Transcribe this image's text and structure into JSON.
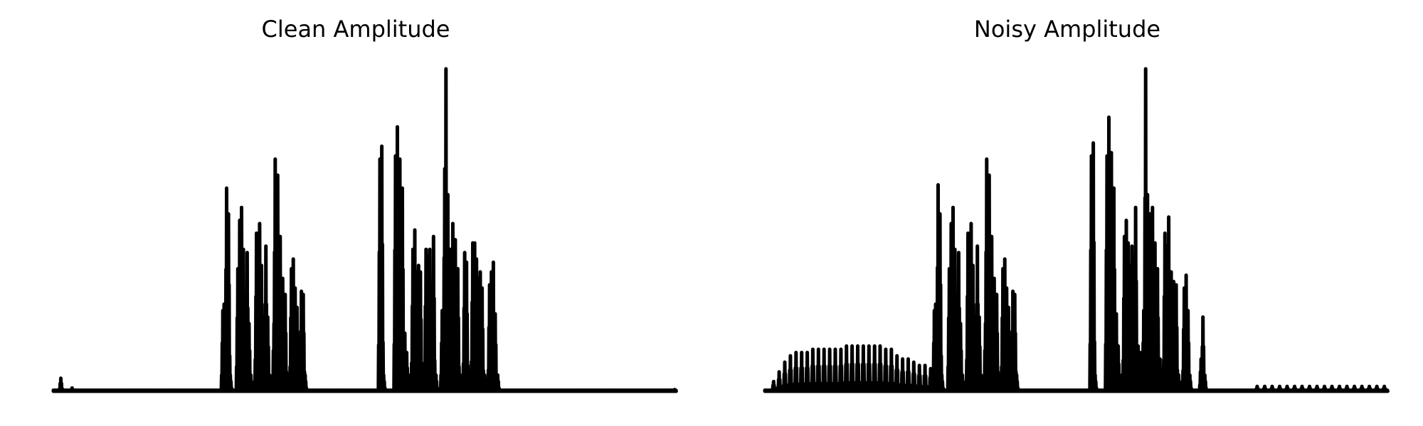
{
  "chart_data": [
    {
      "type": "line",
      "title": "Clean Amplitude",
      "xlabel": "",
      "ylabel": "",
      "axes": "off",
      "grid": false,
      "ylim": [
        0,
        1
      ],
      "n_samples": 1000,
      "peaks": [
        [
          12,
          0.04
        ],
        [
          30,
          0.01
        ],
        [
          272,
          0.25
        ],
        [
          274,
          0.27
        ],
        [
          278,
          0.63
        ],
        [
          281,
          0.55
        ],
        [
          284,
          0.05
        ],
        [
          296,
          0.38
        ],
        [
          299,
          0.53
        ],
        [
          302,
          0.57
        ],
        [
          305,
          0.44
        ],
        [
          308,
          0.08
        ],
        [
          311,
          0.43
        ],
        [
          314,
          0.21
        ],
        [
          317,
          0.05
        ],
        [
          326,
          0.49
        ],
        [
          329,
          0.42
        ],
        [
          331,
          0.52
        ],
        [
          334,
          0.39
        ],
        [
          338,
          0.05
        ],
        [
          341,
          0.45
        ],
        [
          344,
          0.23
        ],
        [
          347,
          0.05
        ],
        [
          354,
          0.21
        ],
        [
          356,
          0.72
        ],
        [
          360,
          0.67
        ],
        [
          364,
          0.48
        ],
        [
          368,
          0.35
        ],
        [
          372,
          0.3
        ],
        [
          376,
          0.05
        ],
        [
          382,
          0.38
        ],
        [
          385,
          0.41
        ],
        [
          388,
          0.32
        ],
        [
          391,
          0.26
        ],
        [
          394,
          0.05
        ],
        [
          398,
          0.31
        ],
        [
          401,
          0.3
        ],
        [
          404,
          0.05
        ],
        [
          524,
          0.72
        ],
        [
          527,
          0.76
        ],
        [
          530,
          0.05
        ],
        [
          549,
          0.73
        ],
        [
          552,
          0.82
        ],
        [
          556,
          0.72
        ],
        [
          560,
          0.63
        ],
        [
          564,
          0.18
        ],
        [
          567,
          0.12
        ],
        [
          570,
          0.05
        ],
        [
          577,
          0.44
        ],
        [
          580,
          0.5
        ],
        [
          583,
          0.37
        ],
        [
          586,
          0.39
        ],
        [
          589,
          0.37
        ],
        [
          592,
          0.05
        ],
        [
          598,
          0.44
        ],
        [
          601,
          0.42
        ],
        [
          604,
          0.44
        ],
        [
          607,
          0.33
        ],
        [
          610,
          0.48
        ],
        [
          614,
          0.05
        ],
        [
          624,
          0.25
        ],
        [
          628,
          0.69
        ],
        [
          630,
          1.0
        ],
        [
          633,
          0.61
        ],
        [
          637,
          0.44
        ],
        [
          641,
          0.52
        ],
        [
          645,
          0.47
        ],
        [
          649,
          0.38
        ],
        [
          653,
          0.05
        ],
        [
          660,
          0.43
        ],
        [
          663,
          0.4
        ],
        [
          666,
          0.05
        ],
        [
          673,
          0.46
        ],
        [
          676,
          0.46
        ],
        [
          679,
          0.41
        ],
        [
          682,
          0.35
        ],
        [
          685,
          0.37
        ],
        [
          688,
          0.32
        ],
        [
          692,
          0.05
        ],
        [
          700,
          0.33
        ],
        [
          703,
          0.37
        ],
        [
          706,
          0.4
        ],
        [
          709,
          0.24
        ],
        [
          713,
          0.05
        ],
        [
          997,
          0.005
        ]
      ]
    },
    {
      "type": "line",
      "title": "Noisy Amplitude",
      "xlabel": "",
      "ylabel": "",
      "axes": "off",
      "grid": false,
      "ylim": [
        0,
        1
      ],
      "n_samples": 1000,
      "noise_bursts": {
        "start": 14,
        "end": 270,
        "period": 9,
        "peak_heights": [
          0.03,
          0.06,
          0.09,
          0.11,
          0.12,
          0.12,
          0.12,
          0.13,
          0.13,
          0.13,
          0.13,
          0.13,
          0.13,
          0.14,
          0.14,
          0.14,
          0.14,
          0.14,
          0.14,
          0.14,
          0.13,
          0.13,
          0.11,
          0.1,
          0.1,
          0.09,
          0.08,
          0.08,
          0.07
        ]
      },
      "tail_bursts": {
        "start": 790,
        "end": 995,
        "period": 12,
        "height": 0.015
      },
      "peaks": [
        [
          272,
          0.25
        ],
        [
          274,
          0.27
        ],
        [
          278,
          0.64
        ],
        [
          281,
          0.55
        ],
        [
          284,
          0.05
        ],
        [
          296,
          0.38
        ],
        [
          299,
          0.52
        ],
        [
          302,
          0.57
        ],
        [
          305,
          0.44
        ],
        [
          308,
          0.08
        ],
        [
          311,
          0.43
        ],
        [
          314,
          0.21
        ],
        [
          317,
          0.05
        ],
        [
          326,
          0.49
        ],
        [
          329,
          0.42
        ],
        [
          331,
          0.52
        ],
        [
          334,
          0.39
        ],
        [
          338,
          0.05
        ],
        [
          341,
          0.45
        ],
        [
          344,
          0.23
        ],
        [
          347,
          0.05
        ],
        [
          354,
          0.21
        ],
        [
          356,
          0.72
        ],
        [
          360,
          0.67
        ],
        [
          364,
          0.48
        ],
        [
          368,
          0.35
        ],
        [
          372,
          0.3
        ],
        [
          376,
          0.05
        ],
        [
          382,
          0.38
        ],
        [
          385,
          0.41
        ],
        [
          388,
          0.32
        ],
        [
          391,
          0.26
        ],
        [
          394,
          0.05
        ],
        [
          398,
          0.31
        ],
        [
          401,
          0.3
        ],
        [
          404,
          0.05
        ],
        [
          524,
          0.73
        ],
        [
          527,
          0.77
        ],
        [
          530,
          0.05
        ],
        [
          549,
          0.73
        ],
        [
          552,
          0.85
        ],
        [
          556,
          0.74
        ],
        [
          560,
          0.63
        ],
        [
          564,
          0.24
        ],
        [
          567,
          0.14
        ],
        [
          570,
          0.05
        ],
        [
          577,
          0.48
        ],
        [
          580,
          0.53
        ],
        [
          583,
          0.46
        ],
        [
          586,
          0.39
        ],
        [
          589,
          0.45
        ],
        [
          592,
          0.42
        ],
        [
          595,
          0.57
        ],
        [
          599,
          0.14
        ],
        [
          602,
          0.12
        ],
        [
          608,
          0.25
        ],
        [
          611,
          1.0
        ],
        [
          614,
          0.61
        ],
        [
          618,
          0.55
        ],
        [
          622,
          0.57
        ],
        [
          626,
          0.46
        ],
        [
          630,
          0.38
        ],
        [
          634,
          0.1
        ],
        [
          642,
          0.49
        ],
        [
          645,
          0.45
        ],
        [
          648,
          0.54
        ],
        [
          652,
          0.37
        ],
        [
          656,
          0.34
        ],
        [
          660,
          0.33
        ],
        [
          664,
          0.05
        ],
        [
          673,
          0.32
        ],
        [
          676,
          0.36
        ],
        [
          679,
          0.25
        ],
        [
          682,
          0.05
        ],
        [
          700,
          0.1
        ],
        [
          703,
          0.23
        ],
        [
          706,
          0.05
        ]
      ]
    }
  ]
}
